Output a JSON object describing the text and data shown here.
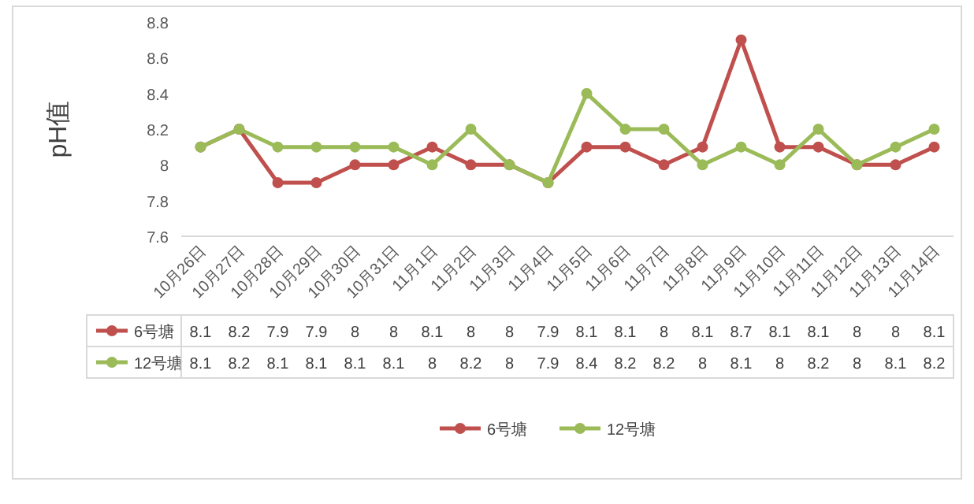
{
  "chart_data": {
    "type": "line",
    "ylabel": "pH值",
    "categories": [
      "10月26日",
      "10月27日",
      "10月28日",
      "10月29日",
      "10月30日",
      "10月31日",
      "11月1日",
      "11月2日",
      "11月3日",
      "11月4日",
      "11月5日",
      "11月6日",
      "11月7日",
      "11月8日",
      "11月9日",
      "11月10日",
      "11月11日",
      "11月12日",
      "11月13日",
      "11月14日"
    ],
    "series": [
      {
        "name": "6号塘",
        "color": "#c0504d",
        "values": [
          8.1,
          8.2,
          7.9,
          7.9,
          8,
          8,
          8.1,
          8,
          8,
          7.9,
          8.1,
          8.1,
          8,
          8.1,
          8.7,
          8.1,
          8.1,
          8,
          8,
          8.1
        ]
      },
      {
        "name": "12号塘",
        "color": "#9bbb59",
        "values": [
          8.1,
          8.2,
          8.1,
          8.1,
          8.1,
          8.1,
          8,
          8.2,
          8,
          7.9,
          8.4,
          8.2,
          8.2,
          8,
          8.1,
          8,
          8.2,
          8,
          8.1,
          8.2
        ]
      }
    ],
    "ylim": [
      7.6,
      8.8
    ],
    "yticks": [
      7.6,
      7.8,
      8,
      8.2,
      8.4,
      8.6,
      8.8
    ],
    "marker": "circle",
    "data_labels": true,
    "legend": "bottom"
  }
}
